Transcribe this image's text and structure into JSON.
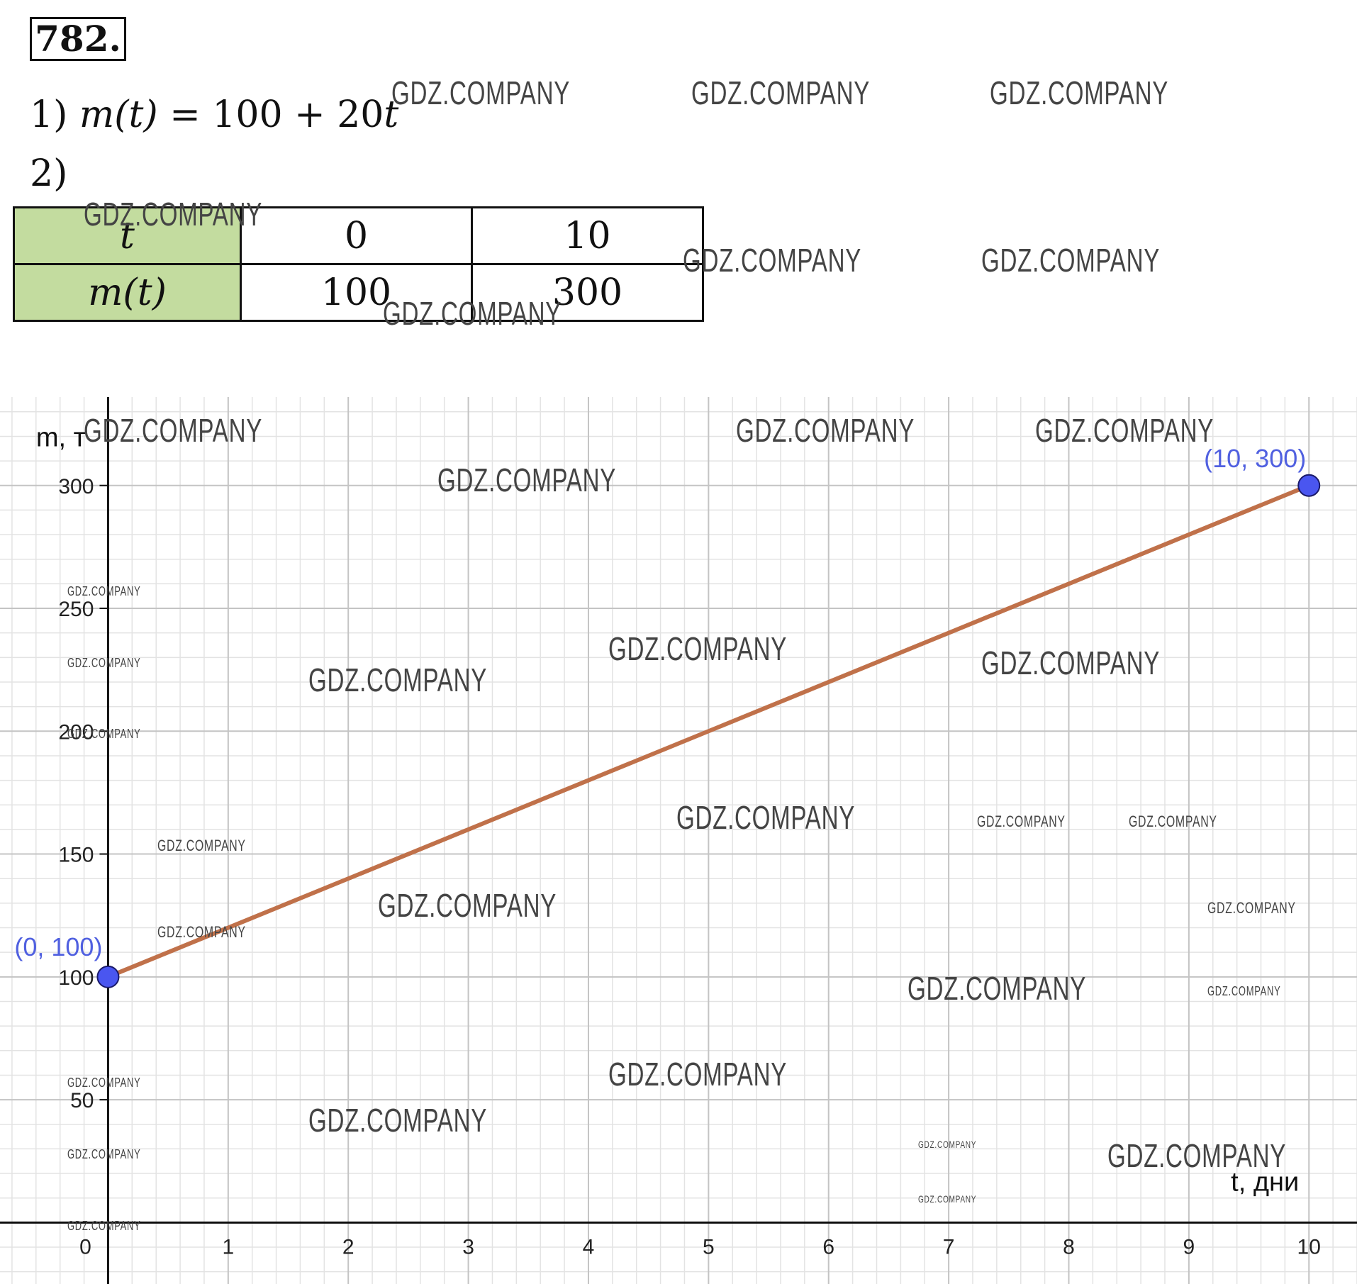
{
  "problem": {
    "number": "782."
  },
  "part1": {
    "label": "1)",
    "lhs": "m(t)",
    "eq": " = 100 + 20",
    "var": "t"
  },
  "part2": {
    "label": "2)"
  },
  "value_table": {
    "rows": [
      {
        "header": "t",
        "cells": [
          "0",
          "10"
        ]
      },
      {
        "header": "m(t)",
        "cells": [
          "100",
          "300"
        ]
      }
    ],
    "header_color": "#c3dc9f"
  },
  "watermark": "GDZ.COMPANY",
  "chart_data": {
    "type": "line",
    "xlabel": "t, дни",
    "ylabel": "m, т",
    "xlim": [
      -0.9,
      10.4
    ],
    "ylim": [
      -25,
      336
    ],
    "xticks": [
      0,
      1,
      2,
      3,
      4,
      5,
      6,
      7,
      8,
      9,
      10
    ],
    "yticks": [
      50,
      100,
      150,
      200,
      250,
      300
    ],
    "grid": true,
    "series": [
      {
        "x": [
          0,
          10
        ],
        "y": [
          100,
          300
        ],
        "color": "#c0714a"
      }
    ],
    "points": [
      {
        "x": 0,
        "y": 100,
        "label": "(0, 100)"
      },
      {
        "x": 10,
        "y": 300,
        "label": "(10, 300)"
      }
    ],
    "point_color": "#4a56f0",
    "point_label_color": "#5060e0"
  }
}
